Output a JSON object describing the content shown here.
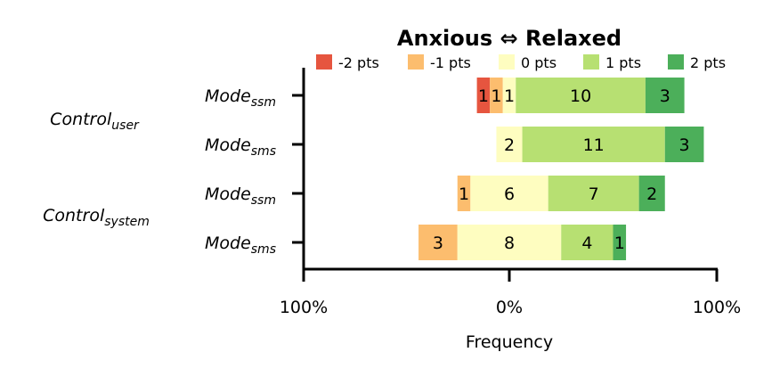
{
  "chart_data": {
    "type": "bar",
    "orientation": "horizontal-diverging-stacked",
    "title": "Anxious ⇔ Relaxed",
    "xlabel": "Frequency",
    "x_tick_labels": [
      "100%",
      "0%",
      "100%"
    ],
    "xlim_percent": [
      -100,
      100
    ],
    "total_per_row": 16,
    "legend_position": "top",
    "grid": false,
    "legend": [
      {
        "key": "-2",
        "label": "-2 pts",
        "color": "#e6553f"
      },
      {
        "key": "-1",
        "label": "-1 pts",
        "color": "#fcbd6e"
      },
      {
        "key": "0",
        "label": "0 pts",
        "color": "#fefdc0"
      },
      {
        "key": "1",
        "label": "1 pts",
        "color": "#b7e072"
      },
      {
        "key": "2",
        "label": "2 pts",
        "color": "#4caf5a"
      }
    ],
    "groups": [
      {
        "label": {
          "main": "Control",
          "sub": "user"
        },
        "rows": [
          {
            "label": {
              "main": "Mode",
              "sub": "ssm"
            },
            "counts": {
              "-2": 1,
              "-1": 1,
              "0": 1,
              "1": 10,
              "2": 3
            }
          },
          {
            "label": {
              "main": "Mode",
              "sub": "sms"
            },
            "counts": {
              "-2": 0,
              "-1": 0,
              "0": 2,
              "1": 11,
              "2": 3
            }
          }
        ]
      },
      {
        "label": {
          "main": "Control",
          "sub": "system"
        },
        "rows": [
          {
            "label": {
              "main": "Mode",
              "sub": "ssm"
            },
            "counts": {
              "-2": 0,
              "-1": 1,
              "0": 6,
              "1": 7,
              "2": 2
            }
          },
          {
            "label": {
              "main": "Mode",
              "sub": "sms"
            },
            "counts": {
              "-2": 0,
              "-1": 3,
              "0": 8,
              "1": 4,
              "2": 1
            }
          }
        ]
      }
    ]
  }
}
